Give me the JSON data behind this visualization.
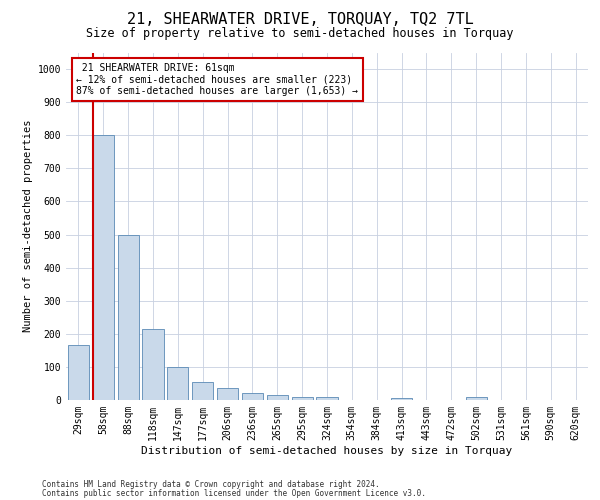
{
  "title": "21, SHEARWATER DRIVE, TORQUAY, TQ2 7TL",
  "subtitle": "Size of property relative to semi-detached houses in Torquay",
  "xlabel": "Distribution of semi-detached houses by size in Torquay",
  "ylabel": "Number of semi-detached properties",
  "footer1": "Contains HM Land Registry data © Crown copyright and database right 2024.",
  "footer2": "Contains public sector information licensed under the Open Government Licence v3.0.",
  "bar_labels": [
    "29sqm",
    "58sqm",
    "88sqm",
    "118sqm",
    "147sqm",
    "177sqm",
    "206sqm",
    "236sqm",
    "265sqm",
    "295sqm",
    "324sqm",
    "354sqm",
    "384sqm",
    "413sqm",
    "443sqm",
    "472sqm",
    "502sqm",
    "531sqm",
    "561sqm",
    "590sqm",
    "620sqm"
  ],
  "bar_values": [
    165,
    800,
    500,
    215,
    100,
    55,
    35,
    20,
    15,
    10,
    8,
    0,
    0,
    7,
    0,
    0,
    10,
    0,
    0,
    0,
    0
  ],
  "bar_color": "#c9d9ea",
  "bar_edge_color": "#5a8ab5",
  "highlight_color": "#cc0000",
  "property_label": "21 SHEARWATER DRIVE: 61sqm",
  "pct_smaller": 12,
  "count_smaller": 223,
  "pct_larger": 87,
  "count_larger": 1653,
  "ylim": [
    0,
    1050
  ],
  "yticks": [
    0,
    100,
    200,
    300,
    400,
    500,
    600,
    700,
    800,
    900,
    1000
  ],
  "annotation_box_color": "#ffffff",
  "annotation_box_edge_color": "#cc0000",
  "grid_color": "#c8d0e0",
  "background_color": "#ffffff",
  "title_fontsize": 11,
  "subtitle_fontsize": 8.5,
  "xlabel_fontsize": 8,
  "ylabel_fontsize": 7.5,
  "tick_fontsize": 7,
  "annotation_fontsize": 7,
  "footer_fontsize": 5.5
}
